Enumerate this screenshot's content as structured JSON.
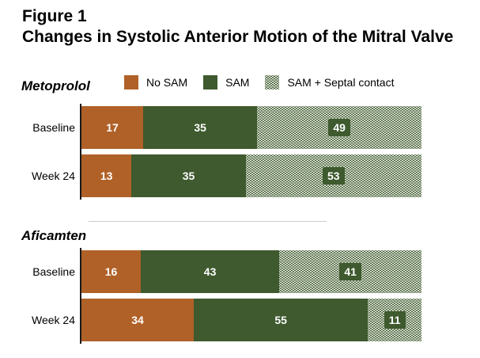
{
  "title": {
    "line1": "Figure 1",
    "line2": "Changes in Systolic Anterior Motion of the Mitral Valve"
  },
  "colors": {
    "no_sam": "#B06128",
    "sam": "#3E5A2E",
    "sam_septal_pattern_base": "#3E5A2E",
    "sam_septal_pattern_dot": "#FFFFFF",
    "value_text": "#FFFFFF",
    "axis": "#1A1A1A",
    "divider": "#CCCCCC"
  },
  "chart_data": {
    "type": "bar",
    "orientation": "horizontal",
    "stacked": true,
    "title": "Figure 1",
    "subtitle": "Changes in Systolic Anterior Motion of the Mitral Valve",
    "legend_position": "top",
    "grid": false,
    "series_names": [
      "No SAM",
      "SAM",
      "SAM + Septal contact"
    ],
    "groups": [
      {
        "name": "Metoprolol",
        "rows": [
          {
            "label": "Baseline",
            "values": [
              17,
              35,
              49
            ]
          },
          {
            "label": "Week 24",
            "values": [
              13,
              35,
              53
            ]
          }
        ]
      },
      {
        "name": "Aficamten",
        "rows": [
          {
            "label": "Baseline",
            "values": [
              16,
              43,
              41
            ]
          },
          {
            "label": "Week 24",
            "values": [
              34,
              55,
              11
            ]
          }
        ]
      }
    ]
  }
}
